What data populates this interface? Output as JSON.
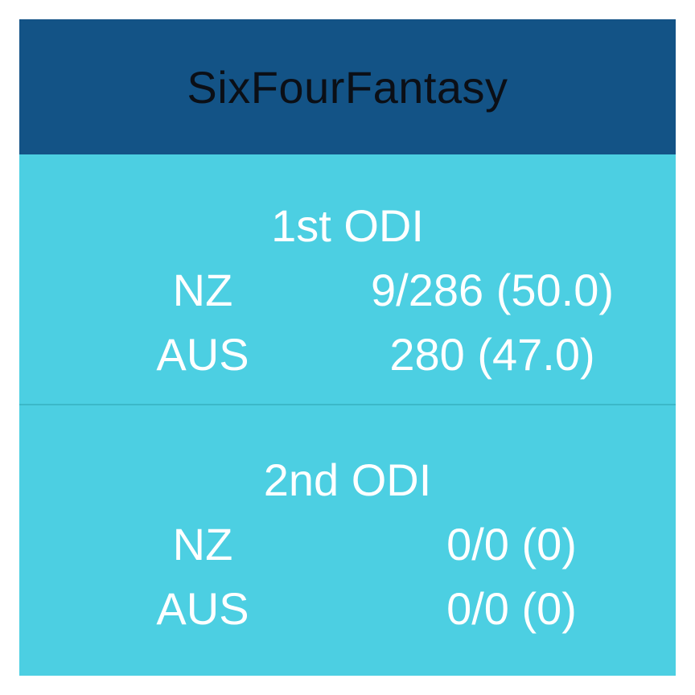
{
  "header": {
    "title": "SixFourFantasy"
  },
  "matches": [
    {
      "title": "1st ODI",
      "teams": [
        {
          "name": "NZ",
          "score": "9/286 (50.0)"
        },
        {
          "name": "AUS",
          "score": "280 (47.0)"
        }
      ]
    },
    {
      "title": "2nd ODI",
      "teams": [
        {
          "name": "NZ",
          "score": "0/0 (0)"
        },
        {
          "name": "AUS",
          "score": "0/0 (0)"
        }
      ]
    }
  ],
  "colors": {
    "header_bg": "#135386",
    "body_bg": "#4ccfe2",
    "divider": "#3cb8c8",
    "text_light": "#ffffff",
    "title_text": "#0b0f16"
  }
}
